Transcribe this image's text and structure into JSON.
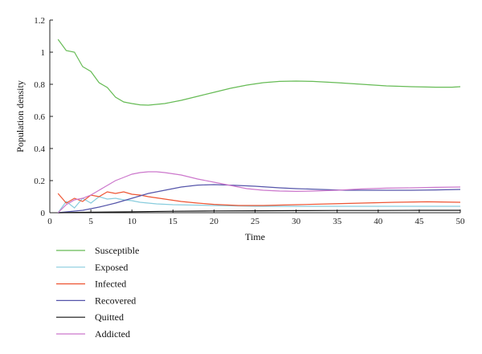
{
  "chart_data": {
    "type": "line",
    "title": "",
    "xlabel": "Time",
    "ylabel": "Population density",
    "xlim": [
      0,
      50
    ],
    "ylim": [
      0,
      1.2
    ],
    "xticks": [
      0,
      5,
      10,
      15,
      20,
      25,
      30,
      35,
      40,
      45,
      50
    ],
    "yticks": [
      0,
      0.2,
      0.4,
      0.6,
      0.8,
      1,
      1.2
    ],
    "xtick_labels": [
      "0",
      "5",
      "10",
      "15",
      "20",
      "25",
      "30",
      "35",
      "40",
      "45",
      "50"
    ],
    "ytick_labels": [
      "0",
      "0.2",
      "0.4",
      "0.6",
      "0.8",
      "1",
      "1.2"
    ],
    "grid": false,
    "legend_placement": "below",
    "series": [
      {
        "name": "Susceptible",
        "color": "#66bb55",
        "points": [
          [
            1,
            1.08
          ],
          [
            2,
            1.01
          ],
          [
            3,
            1.0
          ],
          [
            4,
            0.91
          ],
          [
            5,
            0.88
          ],
          [
            6,
            0.81
          ],
          [
            7,
            0.78
          ],
          [
            8,
            0.72
          ],
          [
            9,
            0.69
          ],
          [
            10,
            0.68
          ],
          [
            11,
            0.672
          ],
          [
            12,
            0.67
          ],
          [
            13,
            0.675
          ],
          [
            14,
            0.68
          ],
          [
            16,
            0.7
          ],
          [
            18,
            0.725
          ],
          [
            20,
            0.75
          ],
          [
            22,
            0.775
          ],
          [
            24,
            0.795
          ],
          [
            26,
            0.81
          ],
          [
            28,
            0.818
          ],
          [
            30,
            0.82
          ],
          [
            32,
            0.818
          ],
          [
            35,
            0.81
          ],
          [
            38,
            0.8
          ],
          [
            41,
            0.79
          ],
          [
            44,
            0.785
          ],
          [
            47,
            0.782
          ],
          [
            49,
            0.782
          ],
          [
            50,
            0.785
          ]
        ]
      },
      {
        "name": "Exposed",
        "color": "#88ccdd",
        "points": [
          [
            1,
            0.0
          ],
          [
            2,
            0.07
          ],
          [
            3,
            0.03
          ],
          [
            4,
            0.09
          ],
          [
            5,
            0.06
          ],
          [
            6,
            0.1
          ],
          [
            7,
            0.085
          ],
          [
            8,
            0.09
          ],
          [
            9,
            0.08
          ],
          [
            10,
            0.075
          ],
          [
            11,
            0.065
          ],
          [
            12,
            0.06
          ],
          [
            13,
            0.055
          ],
          [
            15,
            0.05
          ],
          [
            17,
            0.048
          ],
          [
            20,
            0.045
          ],
          [
            25,
            0.04
          ],
          [
            30,
            0.04
          ],
          [
            35,
            0.04
          ],
          [
            40,
            0.04
          ],
          [
            45,
            0.04
          ],
          [
            50,
            0.04
          ]
        ]
      },
      {
        "name": "Infected",
        "color": "#ee5533",
        "points": [
          [
            1,
            0.12
          ],
          [
            2,
            0.06
          ],
          [
            3,
            0.09
          ],
          [
            4,
            0.07
          ],
          [
            5,
            0.11
          ],
          [
            6,
            0.1
          ],
          [
            7,
            0.13
          ],
          [
            8,
            0.12
          ],
          [
            9,
            0.13
          ],
          [
            10,
            0.115
          ],
          [
            11,
            0.11
          ],
          [
            12,
            0.1
          ],
          [
            14,
            0.085
          ],
          [
            16,
            0.07
          ],
          [
            18,
            0.06
          ],
          [
            20,
            0.052
          ],
          [
            23,
            0.045
          ],
          [
            26,
            0.045
          ],
          [
            30,
            0.05
          ],
          [
            34,
            0.055
          ],
          [
            38,
            0.06
          ],
          [
            42,
            0.065
          ],
          [
            46,
            0.068
          ],
          [
            50,
            0.065
          ]
        ]
      },
      {
        "name": "Recovered",
        "color": "#5555aa",
        "points": [
          [
            1,
            0.0
          ],
          [
            2,
            0.005
          ],
          [
            3,
            0.01
          ],
          [
            4,
            0.015
          ],
          [
            5,
            0.025
          ],
          [
            6,
            0.035
          ],
          [
            8,
            0.06
          ],
          [
            10,
            0.09
          ],
          [
            12,
            0.12
          ],
          [
            14,
            0.14
          ],
          [
            16,
            0.16
          ],
          [
            18,
            0.172
          ],
          [
            20,
            0.175
          ],
          [
            22,
            0.172
          ],
          [
            25,
            0.165
          ],
          [
            28,
            0.155
          ],
          [
            30,
            0.15
          ],
          [
            33,
            0.145
          ],
          [
            36,
            0.14
          ],
          [
            40,
            0.14
          ],
          [
            44,
            0.14
          ],
          [
            47,
            0.142
          ],
          [
            50,
            0.145
          ]
        ]
      },
      {
        "name": "Quitted",
        "color": "#111111",
        "points": [
          [
            1,
            0.0
          ],
          [
            5,
            0.003
          ],
          [
            10,
            0.006
          ],
          [
            15,
            0.009
          ],
          [
            20,
            0.011
          ],
          [
            25,
            0.012
          ],
          [
            30,
            0.013
          ],
          [
            35,
            0.014
          ],
          [
            40,
            0.014
          ],
          [
            45,
            0.015
          ],
          [
            50,
            0.015
          ]
        ]
      },
      {
        "name": "Addicted",
        "color": "#cc77cc",
        "points": [
          [
            1,
            0.0
          ],
          [
            2,
            0.05
          ],
          [
            3,
            0.08
          ],
          [
            4,
            0.09
          ],
          [
            5,
            0.11
          ],
          [
            6,
            0.14
          ],
          [
            7,
            0.17
          ],
          [
            8,
            0.2
          ],
          [
            9,
            0.22
          ],
          [
            10,
            0.24
          ],
          [
            11,
            0.25
          ],
          [
            12,
            0.255
          ],
          [
            13,
            0.255
          ],
          [
            14,
            0.25
          ],
          [
            16,
            0.235
          ],
          [
            18,
            0.21
          ],
          [
            20,
            0.19
          ],
          [
            22,
            0.17
          ],
          [
            24,
            0.15
          ],
          [
            26,
            0.14
          ],
          [
            28,
            0.135
          ],
          [
            30,
            0.133
          ],
          [
            32,
            0.135
          ],
          [
            35,
            0.14
          ],
          [
            38,
            0.148
          ],
          [
            41,
            0.153
          ],
          [
            44,
            0.155
          ],
          [
            47,
            0.158
          ],
          [
            50,
            0.16
          ]
        ]
      }
    ]
  }
}
